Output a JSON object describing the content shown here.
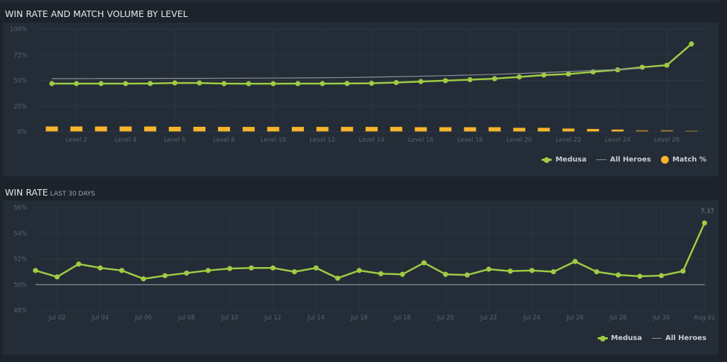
{
  "level_chart": {
    "title": "WIN RATE AND MATCH VOLUME BY LEVEL",
    "legend": [
      {
        "label": "Medusa",
        "icon": "line-dot-icon",
        "color": "#a0cc44"
      },
      {
        "label": "All Heroes",
        "icon": "line-icon",
        "color": "#8a929a"
      },
      {
        "label": "Match %",
        "icon": "circle-icon",
        "color": "#f7b42c"
      }
    ]
  },
  "daily_chart": {
    "title": "WIN RATE",
    "subtitle": "LAST 30 DAYS",
    "last_value_label": "7.37",
    "legend": [
      {
        "label": "Medusa",
        "icon": "line-dot-icon",
        "color": "#a0cc44"
      },
      {
        "label": "All Heroes",
        "icon": "line-icon",
        "color": "#8a929a"
      }
    ]
  },
  "chart_data": [
    {
      "type": "line",
      "title": "WIN RATE AND MATCH VOLUME BY LEVEL",
      "xlabel": "",
      "ylabel": "",
      "ylim": [
        0,
        100
      ],
      "yticks": [
        "0%",
        "25%",
        "50%",
        "75%",
        "100%"
      ],
      "x": [
        "Level 1",
        "Level 2",
        "Level 3",
        "Level 4",
        "Level 5",
        "Level 6",
        "Level 7",
        "Level 8",
        "Level 9",
        "Level 10",
        "Level 11",
        "Level 12",
        "Level 13",
        "Level 14",
        "Level 15",
        "Level 16",
        "Level 17",
        "Level 18",
        "Level 19",
        "Level 20",
        "Level 21",
        "Level 22",
        "Level 23",
        "Level 24",
        "Level 25",
        "Level 26",
        "Level 27"
      ],
      "xtick_labels": [
        "Level 2",
        "Level 4",
        "Level 6",
        "Level 8",
        "Level 10",
        "Level 12",
        "Level 14",
        "Level 16",
        "Level 18",
        "Level 20",
        "Level 22",
        "Level 24",
        "Level 26"
      ],
      "grid": true,
      "legend_position": "bottom-right",
      "series": [
        {
          "name": "Medusa",
          "type": "line",
          "color": "#a0cc44",
          "values": [
            46.9,
            46.9,
            46.9,
            46.9,
            47.0,
            47.5,
            47.5,
            46.9,
            46.8,
            46.8,
            46.9,
            46.9,
            47.0,
            47.2,
            47.9,
            48.9,
            49.8,
            50.7,
            51.7,
            53.4,
            55.2,
            56.2,
            58.3,
            60.3,
            62.8,
            64.8,
            85.5
          ]
        },
        {
          "name": "All Heroes",
          "type": "line",
          "color": "#8a929a",
          "values": [
            51.7,
            51.7,
            51.8,
            51.8,
            51.9,
            52.0,
            52.0,
            52.1,
            52.2,
            52.3,
            52.4,
            52.6,
            52.8,
            53.2,
            53.6,
            54.1,
            54.6,
            55.2,
            55.9,
            56.7,
            57.6,
            58.6,
            59.7,
            60.7,
            61.7,
            null,
            null
          ]
        },
        {
          "name": "Match %",
          "type": "bar",
          "color": "#f7b42c",
          "values": [
            4.8,
            4.8,
            4.8,
            4.8,
            4.8,
            4.5,
            4.5,
            4.4,
            4.4,
            4.4,
            4.4,
            4.4,
            4.4,
            4.4,
            4.4,
            4.1,
            4.1,
            4.1,
            4.1,
            3.5,
            3.5,
            2.8,
            2.4,
            1.8,
            1.2,
            1.2,
            0.5
          ]
        }
      ]
    },
    {
      "type": "line",
      "title": "WIN RATE",
      "subtitle": "LAST 30 DAYS",
      "xlabel": "",
      "ylabel": "",
      "ylim": [
        48,
        56
      ],
      "yticks": [
        "48%",
        "50%",
        "52%",
        "54%",
        "56%"
      ],
      "x": [
        "Jul 01",
        "Jul 02",
        "Jul 03",
        "Jul 04",
        "Jul 05",
        "Jul 06",
        "Jul 07",
        "Jul 08",
        "Jul 09",
        "Jul 10",
        "Jul 11",
        "Jul 12",
        "Jul 13",
        "Jul 14",
        "Jul 15",
        "Jul 16",
        "Jul 17",
        "Jul 18",
        "Jul 19",
        "Jul 20",
        "Jul 21",
        "Jul 22",
        "Jul 23",
        "Jul 24",
        "Jul 25",
        "Jul 26",
        "Jul 27",
        "Jul 28",
        "Jul 29",
        "Jul 30",
        "Jul 31",
        "Aug 01"
      ],
      "xtick_labels": [
        "Jul 02",
        "Jul 04",
        "Jul 06",
        "Jul 08",
        "Jul 10",
        "Jul 12",
        "Jul 14",
        "Jul 16",
        "Jul 18",
        "Jul 20",
        "Jul 22",
        "Jul 24",
        "Jul 26",
        "Jul 28",
        "Jul 30",
        "Aug 01"
      ],
      "grid": true,
      "legend_position": "bottom-right",
      "annotations": [
        {
          "x": "Aug 01",
          "text": "7.37"
        }
      ],
      "series": [
        {
          "name": "Medusa",
          "color": "#a0cc44",
          "values": [
            51.1,
            50.6,
            51.6,
            51.3,
            51.1,
            50.45,
            50.7,
            50.9,
            51.1,
            51.25,
            51.3,
            51.3,
            51.0,
            51.3,
            50.5,
            51.1,
            50.85,
            50.8,
            51.7,
            50.8,
            50.75,
            51.2,
            51.05,
            51.1,
            51.0,
            51.8,
            51.0,
            50.75,
            50.65,
            50.7,
            51.05,
            54.8
          ]
        },
        {
          "name": "All Heroes",
          "color": "#8a929a",
          "values": [
            50,
            50,
            50,
            50,
            50,
            50,
            50,
            50,
            50,
            50,
            50,
            50,
            50,
            50,
            50,
            50,
            50,
            50,
            50,
            50,
            50,
            50,
            50,
            50,
            50,
            50,
            50,
            50,
            50,
            50,
            50,
            50
          ]
        }
      ]
    }
  ]
}
